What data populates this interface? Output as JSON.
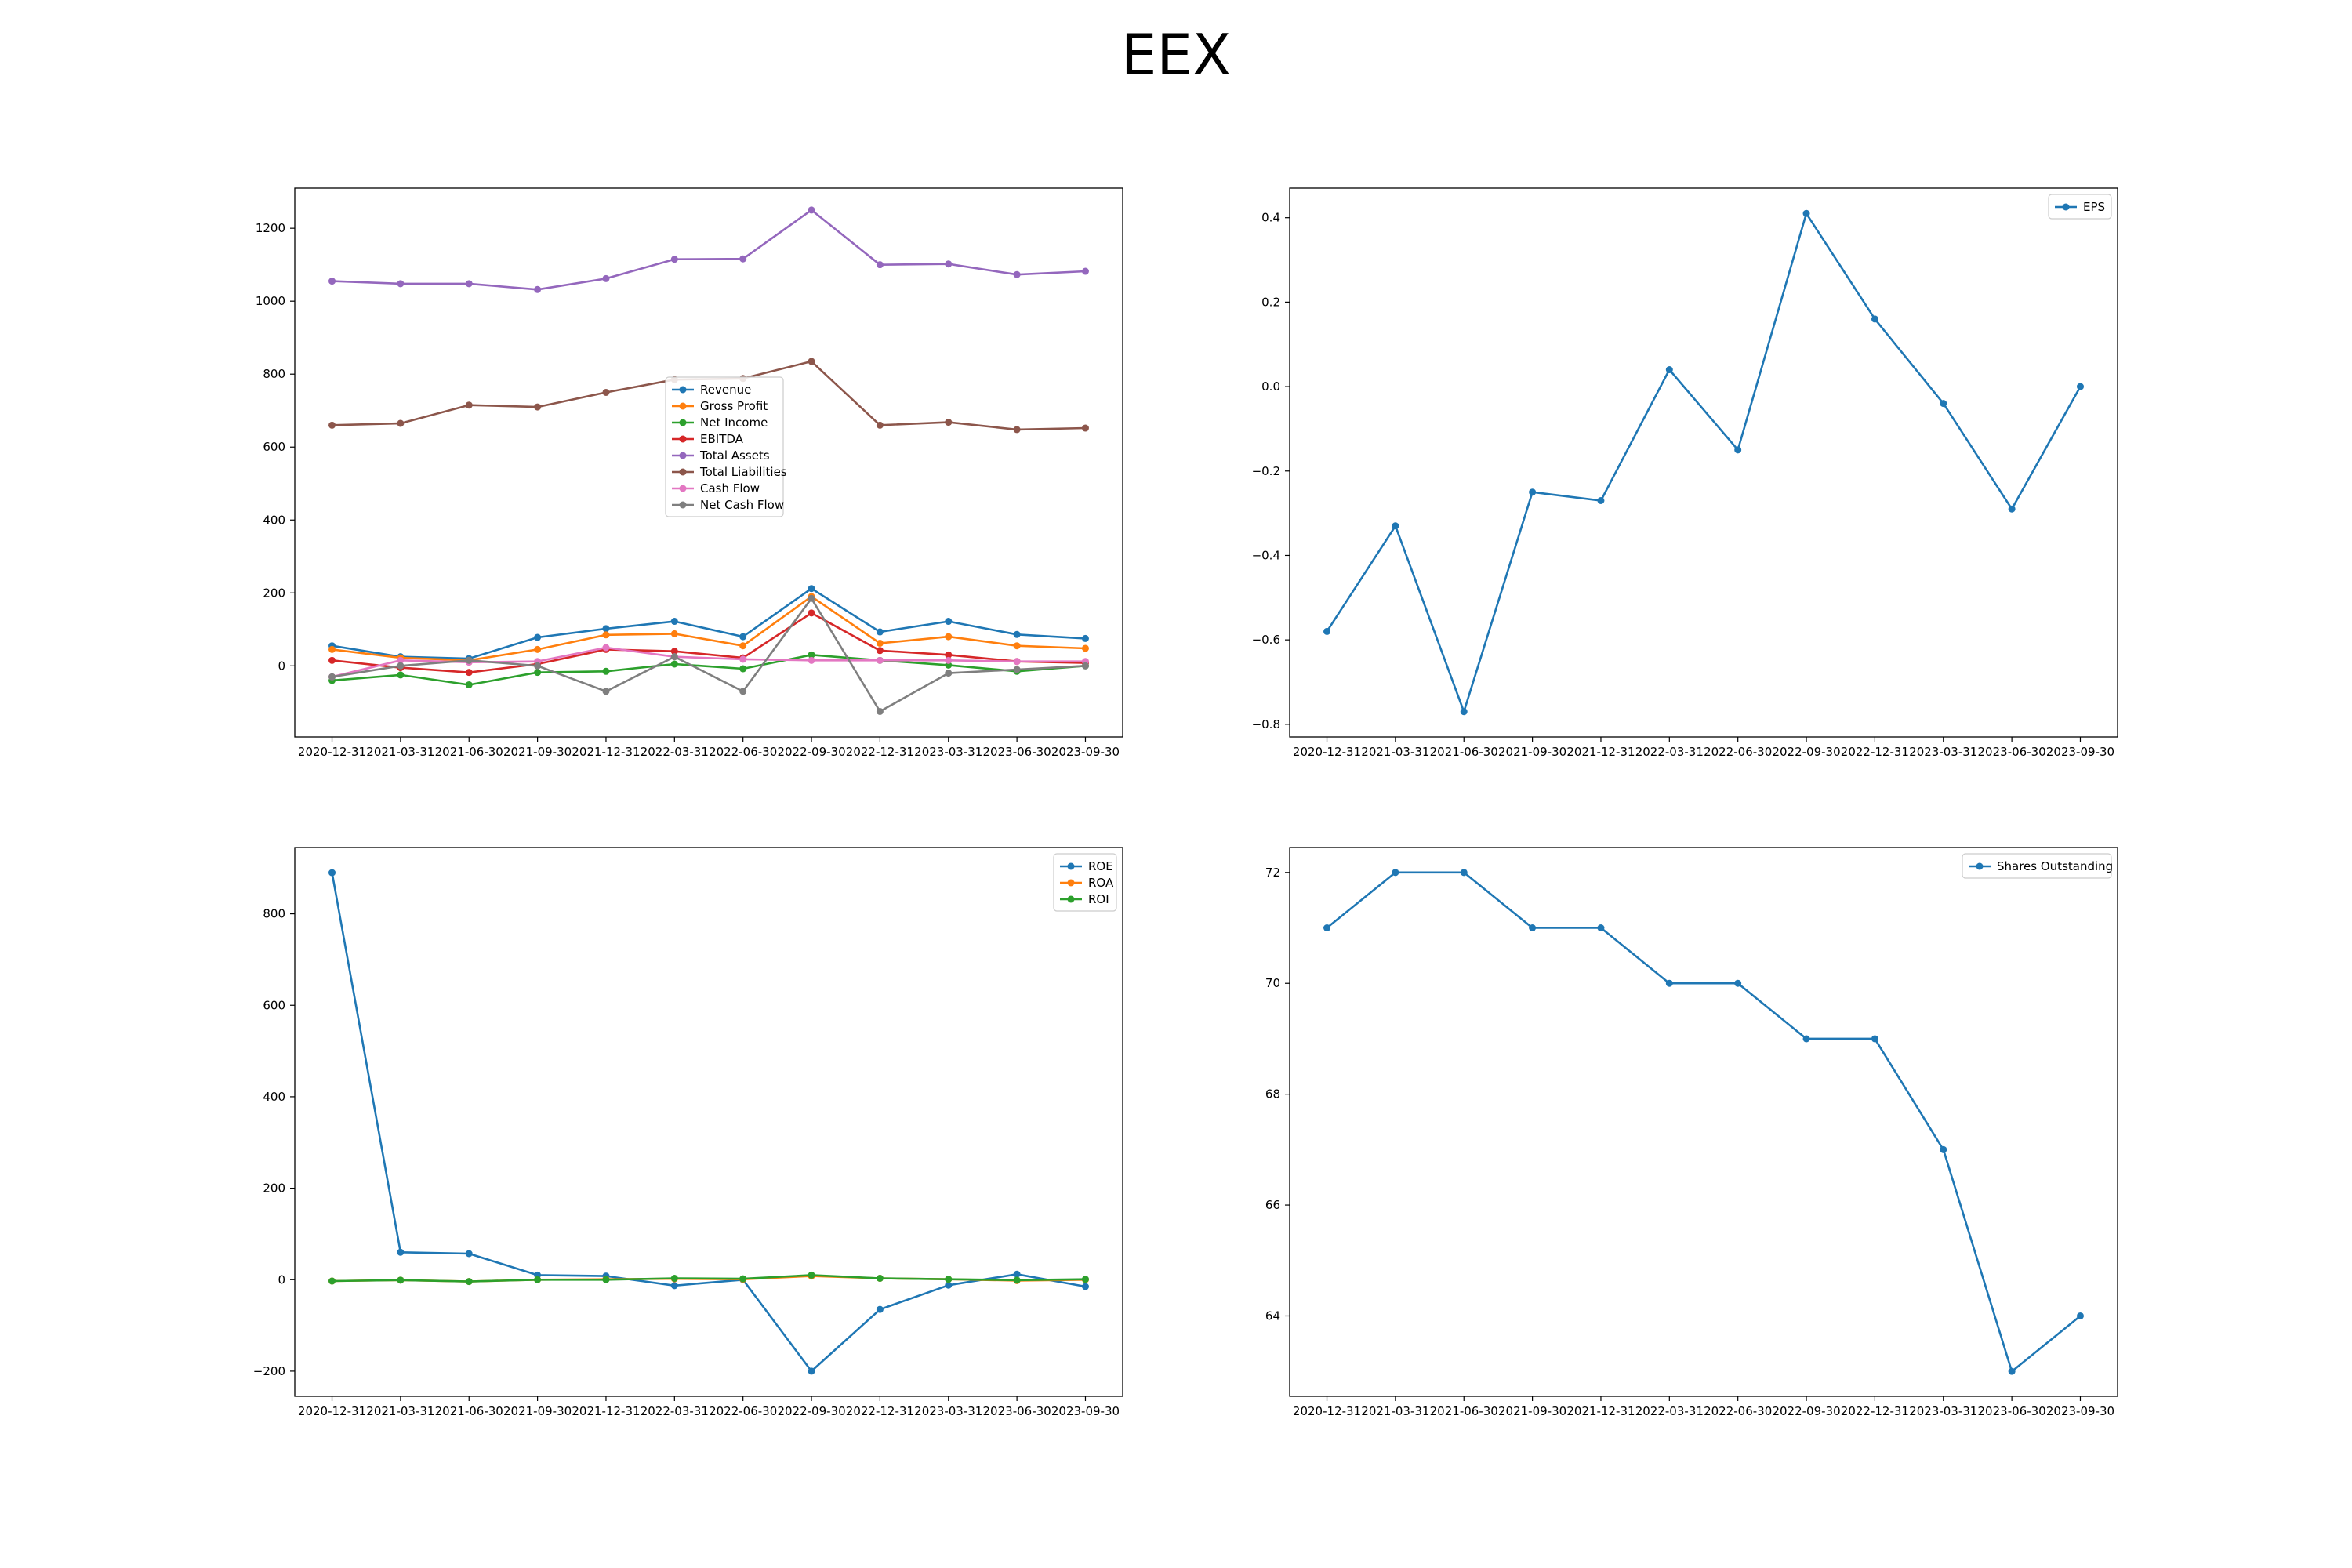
{
  "figure": {
    "title": "EEX"
  },
  "chart_data": [
    {
      "type": "line",
      "categories": [
        "2020-12-31",
        "2021-03-31",
        "2021-06-30",
        "2021-09-30",
        "2021-12-31",
        "2022-03-31",
        "2022-06-30",
        "2022-09-30",
        "2022-12-31",
        "2023-03-31",
        "2023-06-30",
        "2023-09-30"
      ],
      "ylim": [
        -195,
        1310
      ],
      "yticks": [
        0,
        200,
        400,
        600,
        800,
        1000,
        1200
      ],
      "legend": "center",
      "grid": false,
      "series": [
        {
          "name": "Revenue",
          "color": "#1f77b4",
          "values": [
            55,
            25,
            20,
            78,
            102,
            122,
            80,
            212,
            93,
            122,
            86,
            75
          ]
        },
        {
          "name": "Gross Profit",
          "color": "#ff7f0e",
          "values": [
            45,
            22,
            15,
            45,
            85,
            88,
            55,
            190,
            62,
            80,
            55,
            48
          ]
        },
        {
          "name": "Net Income",
          "color": "#2ca02c",
          "values": [
            -40,
            -25,
            -52,
            -18,
            -15,
            5,
            -8,
            30,
            15,
            2,
            -15,
            0
          ]
        },
        {
          "name": "EBITDA",
          "color": "#d62728",
          "values": [
            15,
            -5,
            -18,
            5,
            45,
            40,
            22,
            145,
            42,
            30,
            12,
            8
          ]
        },
        {
          "name": "Total Assets",
          "color": "#9467bd",
          "values": [
            1055,
            1048,
            1048,
            1032,
            1062,
            1115,
            1116,
            1250,
            1100,
            1102,
            1073,
            1082
          ]
        },
        {
          "name": "Total Liabilities",
          "color": "#8c564b",
          "values": [
            660,
            665,
            715,
            710,
            750,
            785,
            788,
            835,
            660,
            668,
            648,
            652
          ]
        },
        {
          "name": "Cash Flow",
          "color": "#e377c2",
          "values": [
            -30,
            15,
            10,
            12,
            50,
            25,
            18,
            15,
            15,
            15,
            12,
            12
          ]
        },
        {
          "name": "Net Cash Flow",
          "color": "#7f7f7f",
          "values": [
            -30,
            0,
            15,
            0,
            -70,
            25,
            -70,
            185,
            -125,
            -20,
            -10,
            0
          ]
        }
      ]
    },
    {
      "type": "line",
      "categories": [
        "2020-12-31",
        "2021-03-31",
        "2021-06-30",
        "2021-09-30",
        "2021-12-31",
        "2022-03-31",
        "2022-06-30",
        "2022-09-30",
        "2022-12-31",
        "2023-03-31",
        "2023-06-30",
        "2023-09-30"
      ],
      "ylim": [
        -0.83,
        0.47
      ],
      "yticks": [
        -0.8,
        -0.6,
        -0.4,
        -0.2,
        0.0,
        0.2,
        0.4
      ],
      "legend": "top-right",
      "grid": false,
      "series": [
        {
          "name": "EPS",
          "color": "#1f77b4",
          "values": [
            -0.58,
            -0.33,
            -0.77,
            -0.25,
            -0.27,
            0.04,
            -0.15,
            0.41,
            0.16,
            -0.04,
            -0.29,
            0.0
          ]
        }
      ]
    },
    {
      "type": "line",
      "categories": [
        "2020-12-31",
        "2021-03-31",
        "2021-06-30",
        "2021-09-30",
        "2021-12-31",
        "2022-03-31",
        "2022-06-30",
        "2022-09-30",
        "2022-12-31",
        "2023-03-31",
        "2023-06-30",
        "2023-09-30"
      ],
      "ylim": [
        -255,
        945
      ],
      "yticks": [
        -200,
        0,
        200,
        400,
        600,
        800
      ],
      "legend": "top-right",
      "grid": false,
      "series": [
        {
          "name": "ROE",
          "color": "#1f77b4",
          "values": [
            890,
            60,
            57,
            10,
            8,
            -13,
            0,
            -200,
            -65,
            -12,
            12,
            -15
          ]
        },
        {
          "name": "ROA",
          "color": "#ff7f0e",
          "values": [
            -3,
            -1,
            -4,
            0,
            1,
            2,
            1,
            8,
            3,
            1,
            -2,
            0
          ]
        },
        {
          "name": "ROI",
          "color": "#2ca02c",
          "values": [
            -3,
            -1,
            -4,
            0,
            0,
            3,
            2,
            10,
            3,
            1,
            -1,
            1
          ]
        }
      ]
    },
    {
      "type": "line",
      "categories": [
        "2020-12-31",
        "2021-03-31",
        "2021-06-30",
        "2021-09-30",
        "2021-12-31",
        "2022-03-31",
        "2022-06-30",
        "2022-09-30",
        "2022-12-31",
        "2023-03-31",
        "2023-06-30",
        "2023-09-30"
      ],
      "ylim": [
        62.55,
        72.45
      ],
      "yticks": [
        64,
        66,
        68,
        70,
        72
      ],
      "legend": "top-right",
      "grid": false,
      "series": [
        {
          "name": "Shares Outstanding",
          "color": "#1f77b4",
          "values": [
            71,
            72,
            72,
            71,
            71,
            70,
            70,
            69,
            69,
            67,
            63,
            64
          ]
        }
      ]
    }
  ]
}
